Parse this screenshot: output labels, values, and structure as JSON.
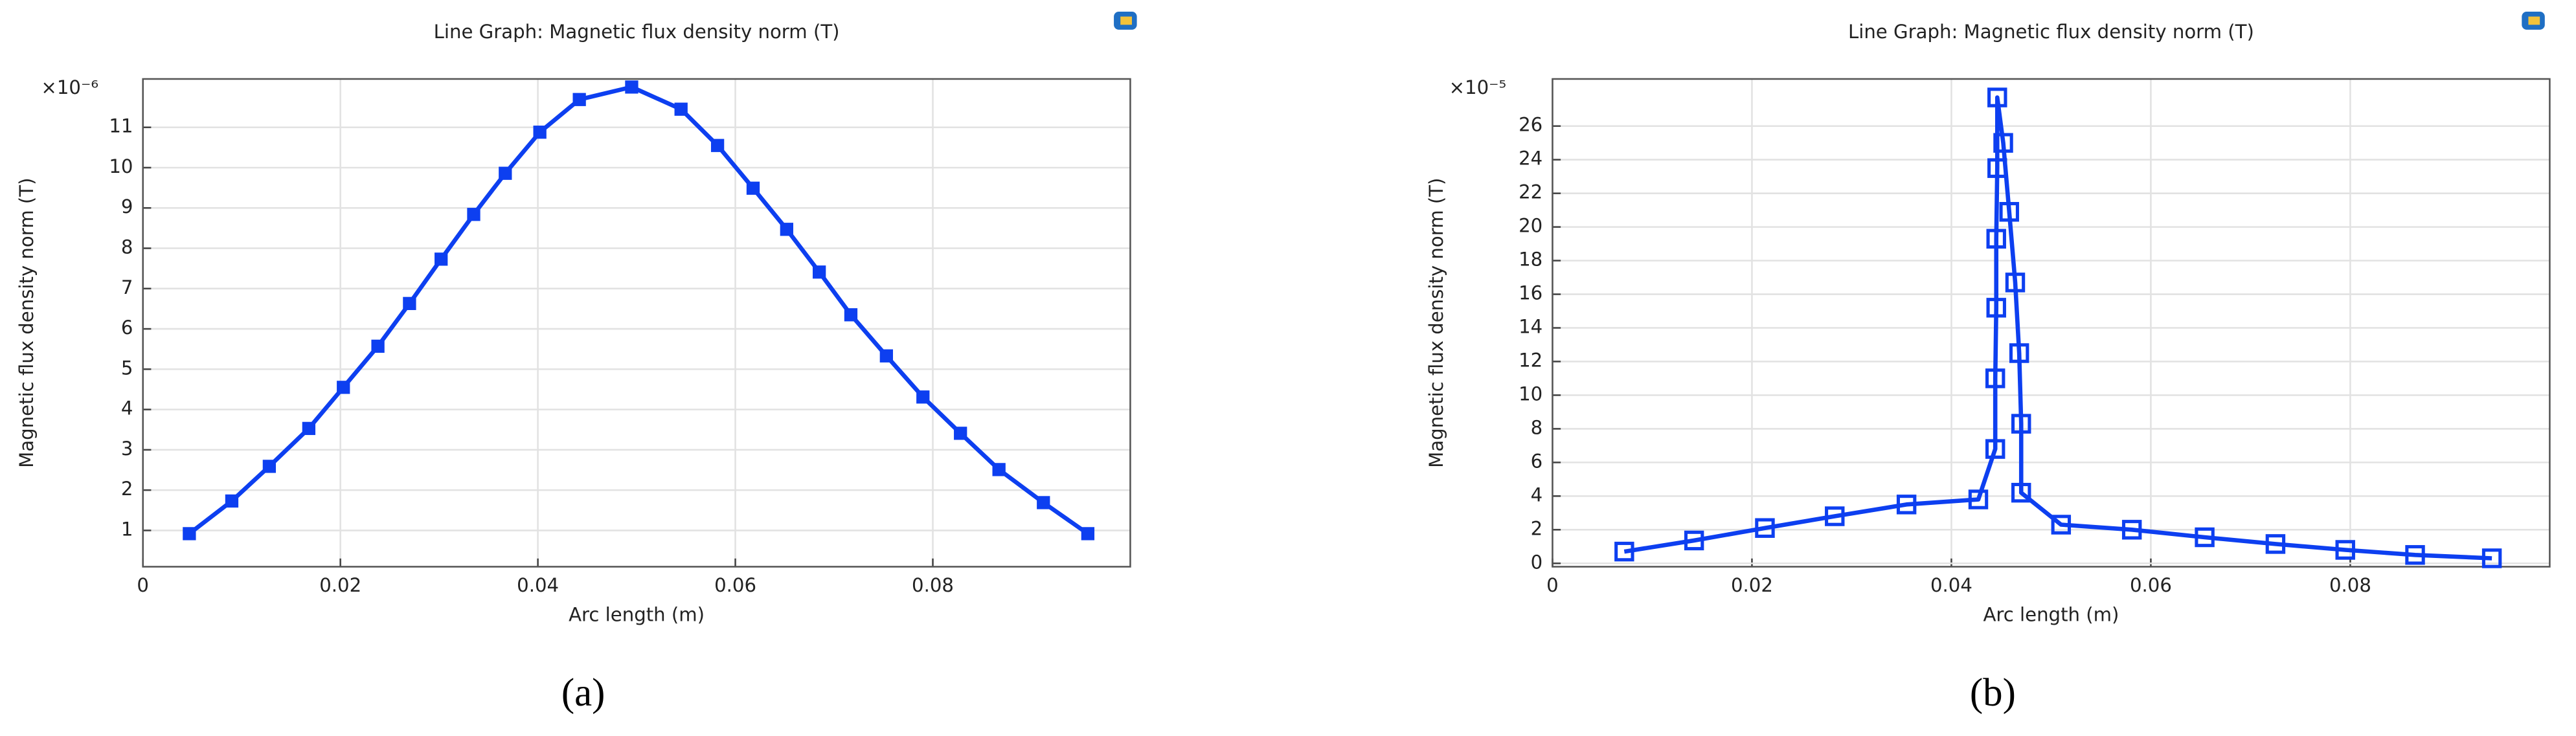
{
  "chart_data": [
    {
      "type": "line",
      "title": "Line Graph: Magnetic flux density norm (T)",
      "xlabel": "Arc length (m)",
      "ylabel": "Magnetic flux density norm (T)",
      "y_multiplier": "×10⁻⁶",
      "caption": "(a)",
      "xlim": [
        0,
        0.1
      ],
      "ylim": [
        0.1,
        12.2
      ],
      "xticks": [
        0,
        0.02,
        0.04,
        0.06,
        0.08
      ],
      "yticks": [
        1,
        2,
        3,
        4,
        5,
        6,
        7,
        8,
        9,
        10,
        11
      ],
      "grid": true,
      "series": [
        {
          "color": "#0d3ff0",
          "marker": "filled-square",
          "x": [
            0.0047,
            0.009,
            0.0128,
            0.0168,
            0.0203,
            0.0238,
            0.027,
            0.0302,
            0.0335,
            0.0367,
            0.0402,
            0.0442,
            0.0495,
            0.0545,
            0.0582,
            0.0618,
            0.0652,
            0.0685,
            0.0717,
            0.0753,
            0.079,
            0.0828,
            0.0867,
            0.0912,
            0.0957
          ],
          "values": [
            0.92,
            1.73,
            2.59,
            3.53,
            4.55,
            5.57,
            6.63,
            7.73,
            8.84,
            9.86,
            10.88,
            11.69,
            12.0,
            11.45,
            10.55,
            9.49,
            8.47,
            7.41,
            6.35,
            5.33,
            4.31,
            3.41,
            2.51,
            1.69,
            0.92
          ]
        }
      ]
    },
    {
      "type": "line",
      "title": "Line Graph: Magnetic flux density norm (T)",
      "xlabel": "Arc length (m)",
      "ylabel": "Magnetic flux density norm (T)",
      "y_multiplier": "×10⁻⁵",
      "caption": "(b)",
      "xlim": [
        0,
        0.1
      ],
      "ylim": [
        -0.2,
        28.8
      ],
      "xticks": [
        0,
        0.02,
        0.04,
        0.06,
        0.08
      ],
      "yticks": [
        0,
        2,
        4,
        6,
        8,
        10,
        12,
        14,
        16,
        18,
        20,
        22,
        24,
        26
      ],
      "grid": true,
      "series": [
        {
          "color": "#0d3ff0",
          "marker": "open-square",
          "x": [
            0.0072,
            0.0142,
            0.0213,
            0.0283,
            0.0355,
            0.0427,
            0.0444,
            0.0444,
            0.0445,
            0.0445,
            0.0446,
            0.0446,
            0.0452,
            0.0458,
            0.0464,
            0.0468,
            0.047,
            0.047,
            0.051,
            0.0581,
            0.0654,
            0.0725,
            0.0795,
            0.0865,
            0.0942
          ],
          "values": [
            0.7,
            1.36,
            2.1,
            2.8,
            3.5,
            3.8,
            6.8,
            11,
            15.2,
            19.3,
            23.5,
            27.7,
            25,
            20.9,
            16.7,
            12.5,
            8.3,
            4.2,
            2.3,
            2.0,
            1.55,
            1.15,
            0.8,
            0.5,
            0.3
          ]
        }
      ]
    }
  ]
}
